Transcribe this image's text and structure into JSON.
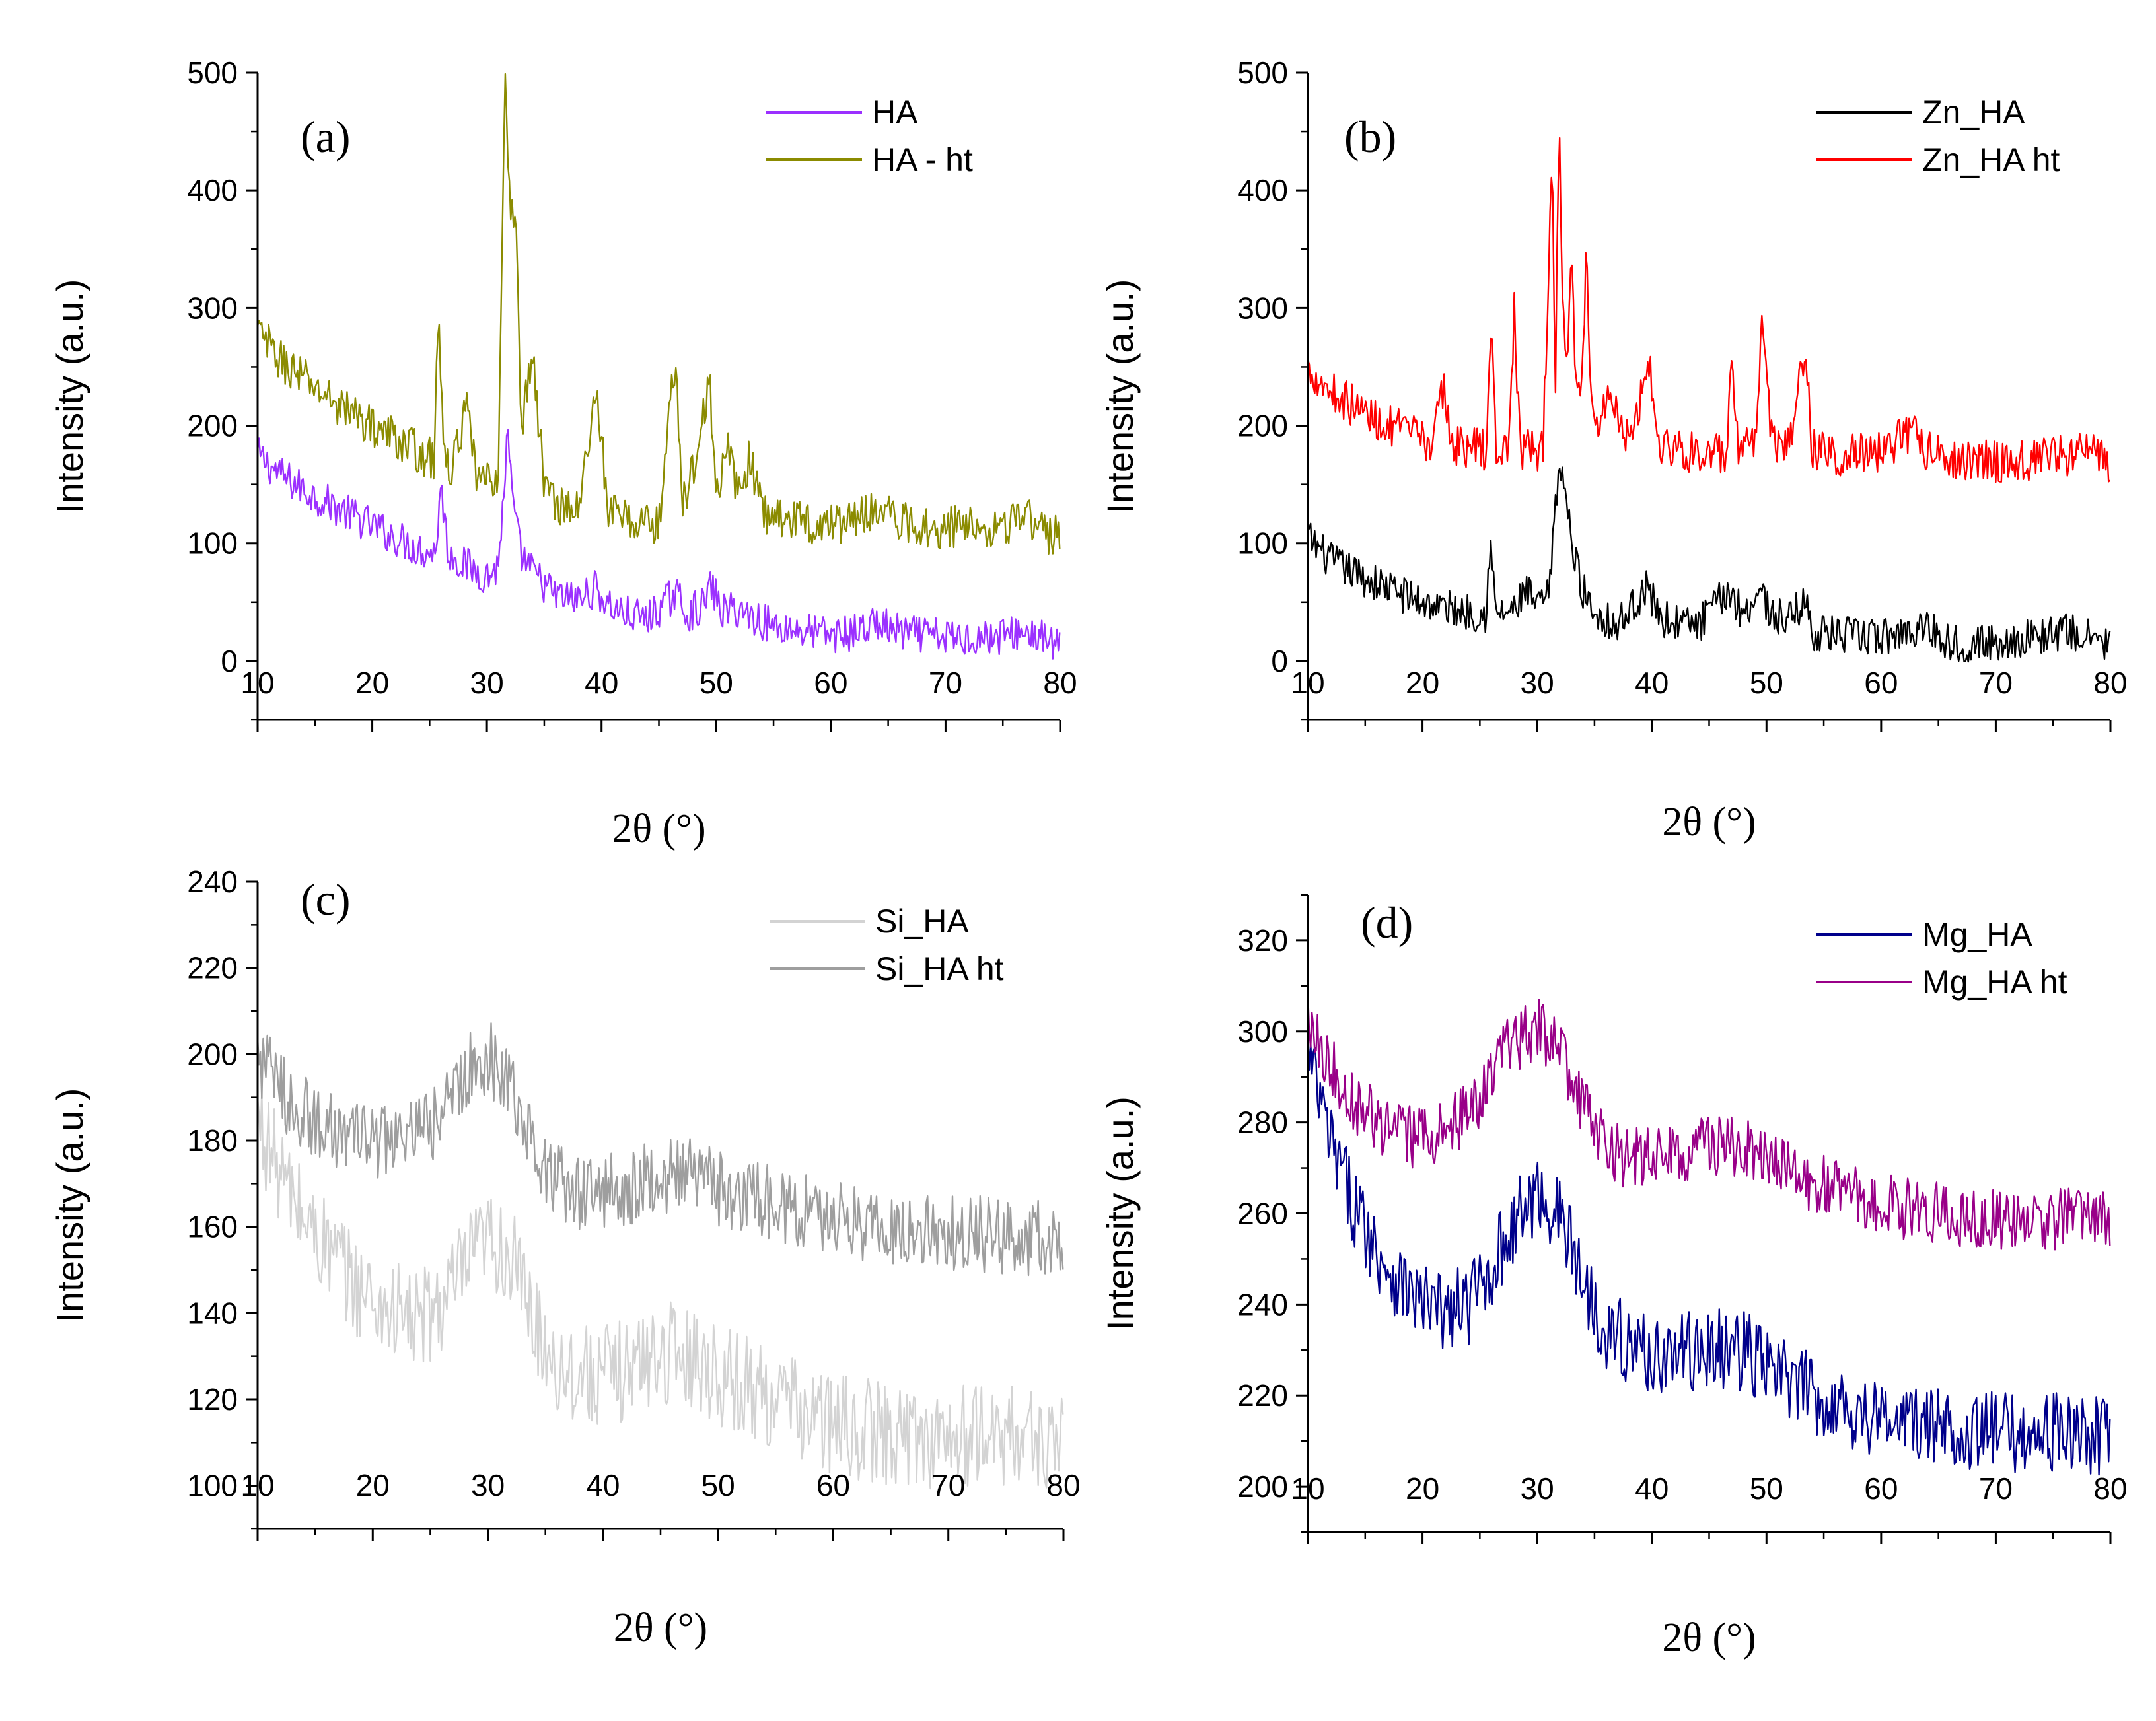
{
  "chart_data": [
    {
      "type": "line",
      "panel_label": "(a)",
      "xlabel": "2θ (°)",
      "ylabel": "Intensity  (a.u.)",
      "xlim": [
        10,
        80
      ],
      "ylim": [
        -50,
        500
      ],
      "xticks": [
        10,
        20,
        30,
        40,
        50,
        60,
        70,
        80
      ],
      "yticks": [
        0,
        100,
        200,
        300,
        400,
        500
      ],
      "legend_position": "top-right",
      "series": [
        {
          "name": "HA",
          "color": "#9B30FF",
          "noise": 16,
          "x": [
            10,
            12,
            15,
            18,
            20,
            22,
            24,
            25.5,
            26,
            26.6,
            28,
            30,
            31,
            31.8,
            32.4,
            33,
            34,
            36,
            38,
            39.5,
            40.5,
            42,
            44,
            45,
            46.5,
            47.5,
            49,
            49.5,
            50.5,
            52,
            53,
            55,
            58,
            60,
            62,
            64,
            66,
            70,
            74,
            77,
            80
          ],
          "values": [
            175,
            158,
            140,
            125,
            115,
            105,
            95,
            92,
            150,
            92,
            82,
            72,
            80,
            190,
            120,
            90,
            75,
            55,
            52,
            62,
            48,
            40,
            36,
            44,
            58,
            40,
            48,
            65,
            42,
            44,
            38,
            30,
            25,
            22,
            24,
            32,
            24,
            20,
            20,
            25,
            12
          ]
        },
        {
          "name": "HA - ht",
          "color": "#8B8B00",
          "noise": 18,
          "x": [
            10,
            12,
            14,
            16,
            18,
            20,
            22,
            24,
            25.4,
            25.8,
            26.2,
            27,
            28.2,
            29,
            30,
            31,
            31.6,
            32,
            32.5,
            33,
            34,
            35,
            36,
            38,
            39.6,
            40.5,
            42,
            44,
            45,
            46.5,
            47,
            48.5,
            49.4,
            50,
            51,
            52,
            53,
            54,
            56,
            58,
            60,
            62,
            64,
            66,
            70,
            72,
            74,
            76,
            77,
            78,
            80
          ],
          "values": [
            280,
            255,
            240,
            225,
            212,
            200,
            190,
            178,
            170,
            310,
            170,
            165,
            215,
            160,
            150,
            160,
            500,
            380,
            385,
            200,
            260,
            150,
            135,
            128,
            235,
            130,
            120,
            118,
            115,
            265,
            130,
            180,
            245,
            135,
            180,
            140,
            175,
            125,
            122,
            118,
            116,
            120,
            132,
            118,
            112,
            118,
            115,
            118,
            125,
            112,
            105
          ]
        }
      ]
    },
    {
      "type": "line",
      "panel_label": "(b)",
      "xlabel": "2θ (°)",
      "ylabel": "Intensity  (a.u.)",
      "xlim": [
        10,
        80
      ],
      "ylim": [
        -50,
        500
      ],
      "xticks": [
        10,
        20,
        30,
        40,
        50,
        60,
        70,
        80
      ],
      "yticks": [
        0,
        100,
        200,
        300,
        400,
        500
      ],
      "legend_position": "top-right",
      "series": [
        {
          "name": "Zn_HA",
          "color": "#000000",
          "noise": 16,
          "x": [
            10,
            12,
            15,
            18,
            20,
            22,
            24,
            25.5,
            25.9,
            26.4,
            28,
            29,
            30,
            31,
            32,
            33,
            34,
            35,
            37,
            39.5,
            41,
            44,
            46.7,
            48,
            49.4,
            50.5,
            52,
            53.3,
            54,
            56,
            60,
            64,
            66,
            70,
            76,
            80
          ],
          "values": [
            105,
            85,
            70,
            58,
            50,
            45,
            42,
            40,
            100,
            40,
            42,
            60,
            45,
            55,
            175,
            100,
            60,
            42,
            30,
            62,
            35,
            30,
            60,
            40,
            62,
            38,
            35,
            52,
            25,
            22,
            20,
            30,
            15,
            15,
            25,
            15
          ]
        },
        {
          "name": "Zn_HA ht",
          "color": "#FF0000",
          "noise": 18,
          "x": [
            10,
            12,
            15,
            17,
            19,
            21,
            21.8,
            22.5,
            24,
            25.6,
            26,
            26.4,
            27.5,
            28,
            28.5,
            29.5,
            30.5,
            31.3,
            31.6,
            31.9,
            32.2,
            32.6,
            33,
            33.4,
            33.8,
            34.3,
            34.7,
            35.2,
            36.5,
            38,
            39.8,
            40.5,
            43,
            46.5,
            47,
            47.5,
            49,
            49.6,
            50.5,
            52,
            53.3,
            54,
            56,
            60,
            63,
            64,
            66,
            70,
            75,
            78,
            80
          ],
          "values": [
            250,
            230,
            210,
            200,
            192,
            186,
            235,
            185,
            182,
            180,
            290,
            180,
            178,
            300,
            180,
            178,
            180,
            420,
            240,
            470,
            300,
            260,
            335,
            240,
            210,
            355,
            220,
            200,
            230,
            185,
            255,
            185,
            178,
            175,
            250,
            180,
            180,
            295,
            185,
            182,
            265,
            180,
            175,
            178,
            195,
            178,
            172,
            170,
            172,
            180,
            165
          ]
        }
      ]
    },
    {
      "type": "line",
      "panel_label": "(c)",
      "xlabel": "2θ (°)",
      "ylabel": "Intensity  (a.u.)",
      "xlim": [
        10,
        80
      ],
      "ylim": [
        90,
        240
      ],
      "xticks": [
        10,
        20,
        30,
        40,
        50,
        60,
        70,
        80
      ],
      "yticks": [
        100,
        120,
        140,
        160,
        180,
        200,
        220,
        240
      ],
      "legend_position": "top-right",
      "series": [
        {
          "name": "Si_HA",
          "color": "#D3D3D3",
          "noise": 12,
          "x": [
            10,
            12,
            14,
            16,
            18,
            20,
            22,
            24,
            26,
            28,
            30,
            32,
            34,
            36,
            38,
            40,
            42,
            45,
            48,
            50,
            55,
            60,
            65,
            70,
            75,
            80
          ],
          "values": [
            185,
            172,
            162,
            155,
            148,
            143,
            140,
            138,
            142,
            150,
            157,
            153,
            138,
            128,
            126,
            125,
            127,
            131,
            130,
            126,
            120,
            114,
            112,
            111,
            112,
            110
          ]
        },
        {
          "name": "Si_HA ht",
          "color": "#9E9E9E",
          "noise": 9,
          "x": [
            10,
            12,
            14,
            16,
            18,
            20,
            22,
            24,
            26,
            28,
            30,
            32,
            34,
            36,
            38,
            40,
            42,
            45,
            48,
            50,
            55,
            60,
            65,
            70,
            75,
            80
          ],
          "values": [
            200,
            192,
            186,
            183,
            181,
            180,
            180,
            181,
            186,
            195,
            200,
            193,
            178,
            170,
            168,
            168,
            169,
            172,
            172,
            169,
            165,
            162,
            160,
            159,
            158,
            157
          ]
        }
      ]
    },
    {
      "type": "line",
      "panel_label": "(d)",
      "xlabel": "2θ (°)",
      "ylabel": "Intensity  (a.u.)",
      "xlim": [
        10,
        80
      ],
      "ylim": [
        190,
        330
      ],
      "xticks": [
        10,
        20,
        30,
        40,
        50,
        60,
        70,
        80
      ],
      "yticks": [
        200,
        220,
        240,
        260,
        280,
        300,
        320
      ],
      "legend_position": "top-right",
      "series": [
        {
          "name": "Mg_HA",
          "color": "#00008B",
          "noise": 9,
          "x": [
            10,
            12,
            14,
            16,
            18,
            20,
            22,
            24,
            26,
            28,
            30,
            32,
            34,
            36,
            38,
            40,
            42,
            45,
            48,
            50,
            55,
            60,
            65,
            70,
            75,
            80
          ],
          "values": [
            295,
            275,
            262,
            252,
            245,
            240,
            238,
            240,
            248,
            258,
            264,
            260,
            245,
            235,
            231,
            229,
            229,
            230,
            230,
            226,
            219,
            215,
            213,
            212,
            212,
            211
          ]
        },
        {
          "name": "Mg_HA ht",
          "color": "#990088",
          "noise": 7,
          "x": [
            10,
            12,
            14,
            16,
            18,
            20,
            22,
            24,
            26,
            28,
            30,
            32,
            34,
            36,
            38,
            40,
            42,
            45,
            48,
            50,
            55,
            60,
            65,
            70,
            75,
            80
          ],
          "values": [
            305,
            292,
            285,
            280,
            277,
            277,
            278,
            282,
            290,
            298,
            301,
            295,
            283,
            275,
            272,
            272,
            273,
            275,
            274,
            271,
            266,
            262,
            260,
            259,
            259,
            259
          ]
        }
      ]
    }
  ]
}
